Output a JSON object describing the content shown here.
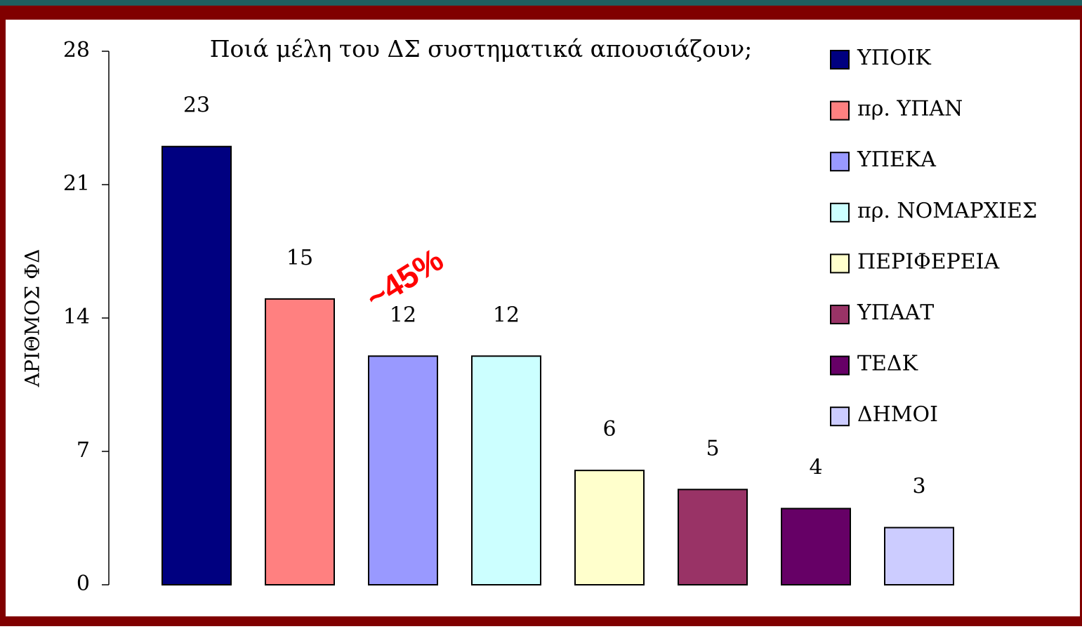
{
  "chart_data": {
    "type": "bar",
    "title": "Ποιά μέλη του ΔΣ συστηματικά απουσιάζουν;",
    "y_label": "ΑΡΙΘΜΟΣ ΦΔ",
    "annotation": "~45%",
    "categories": [
      "ΥΠΟΙΚ",
      "πρ. ΥΠΑΝ",
      "ΥΠΕΚΑ",
      "πρ. ΝΟΜΑΡΧΙΕΣ",
      "ΠΕΡΙΦΕΡΕΙΑ",
      "ΥΠΑΑΤ",
      "ΤΕΔΚ",
      "ΔΗΜΟΙ"
    ],
    "values": [
      23,
      15,
      12,
      12,
      6,
      5,
      4,
      3
    ],
    "colors": [
      "#000080",
      "#ff8080",
      "#9999ff",
      "#ccffff",
      "#ffffcc",
      "#993366",
      "#660066",
      "#ccccff"
    ],
    "ylim": [
      0,
      28
    ],
    "yticks": [
      0,
      7,
      14,
      21,
      28
    ],
    "legend": "right"
  }
}
